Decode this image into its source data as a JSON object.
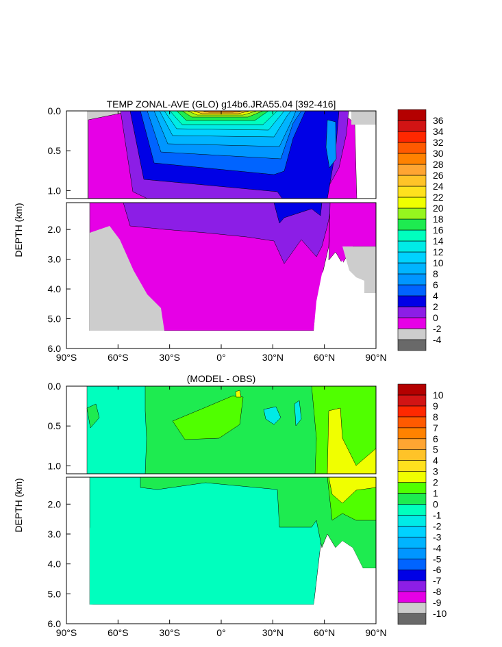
{
  "chart_data": [
    {
      "type": "heatmap",
      "title": "TEMP ZONAL-AVE (GLO) g14b6.JRA55.04 [392-416]",
      "ylabel": "DEPTH (km)",
      "xlabel": "",
      "xlim": [
        -90,
        90
      ],
      "x_ticks": [
        "90°S",
        "60°S",
        "30°S",
        "0°",
        "30°N",
        "60°N",
        "90°N"
      ],
      "upper_yticks": [
        "0.0",
        "0.5",
        "1.0"
      ],
      "lower_yticks": [
        "2.0",
        "3.0",
        "4.0",
        "5.0",
        "6.0"
      ],
      "ylim_upper_km": [
        0,
        1.1
      ],
      "ylim_lower_km": [
        1.1,
        6.0
      ],
      "colorbar_levels": [
        -4,
        -2,
        0,
        2,
        4,
        6,
        8,
        10,
        12,
        14,
        16,
        18,
        20,
        22,
        24,
        26,
        28,
        30,
        32,
        34,
        36
      ],
      "colorbar_labels": [
        "36",
        "34",
        "32",
        "30",
        "28",
        "26",
        "24",
        "22",
        "20",
        "18",
        "16",
        "14",
        "12",
        "10",
        "8",
        "6",
        "4",
        "2",
        "0",
        "-2",
        "-4"
      ],
      "colorbar_colors": [
        "#696969",
        "#cdcdcd",
        "#e600e6",
        "#8c1ee6",
        "#0000e6",
        "#0064ff",
        "#0096ff",
        "#00b4ff",
        "#00d2ff",
        "#00ebe6",
        "#00ffbe",
        "#1eeb50",
        "#96f51e",
        "#f0ff00",
        "#ffe11e",
        "#ffc328",
        "#ffa532",
        "#ff8200",
        "#ff5a00",
        "#ff2800",
        "#d21414",
        "#b40000"
      ]
    },
    {
      "type": "heatmap",
      "title": "(MODEL - OBS)",
      "ylabel": "DEPTH (km)",
      "xlabel": "",
      "xlim": [
        -90,
        90
      ],
      "x_ticks": [
        "90°S",
        "60°S",
        "30°S",
        "0°",
        "30°N",
        "60°N",
        "90°N"
      ],
      "upper_yticks": [
        "0.0",
        "0.5",
        "1.0"
      ],
      "lower_yticks": [
        "2.0",
        "3.0",
        "4.0",
        "5.0",
        "6.0"
      ],
      "ylim_upper_km": [
        0,
        1.1
      ],
      "ylim_lower_km": [
        1.1,
        6.0
      ],
      "colorbar_levels": [
        -10,
        -9,
        -8,
        -7,
        -6,
        -5,
        -4,
        -3,
        -2,
        -1,
        0,
        1,
        2,
        3,
        4,
        5,
        6,
        7,
        8,
        9,
        10
      ],
      "colorbar_labels": [
        "10",
        "9",
        "8",
        "7",
        "6",
        "5",
        "4",
        "3",
        "2",
        "1",
        "0",
        "-1",
        "-2",
        "-3",
        "-4",
        "-5",
        "-6",
        "-7",
        "-8",
        "-9",
        "-10"
      ],
      "colorbar_colors": [
        "#696969",
        "#cdcdcd",
        "#e600e6",
        "#8c1ee6",
        "#0000e6",
        "#0064ff",
        "#0096ff",
        "#00b4ff",
        "#00d2ff",
        "#00ebe6",
        "#00ffbe",
        "#1eeb50",
        "#50ff00",
        "#f0ff00",
        "#ffe11e",
        "#ffc328",
        "#ffa532",
        "#ff8200",
        "#ff5a00",
        "#ff2800",
        "#d21414",
        "#b40000"
      ]
    }
  ]
}
